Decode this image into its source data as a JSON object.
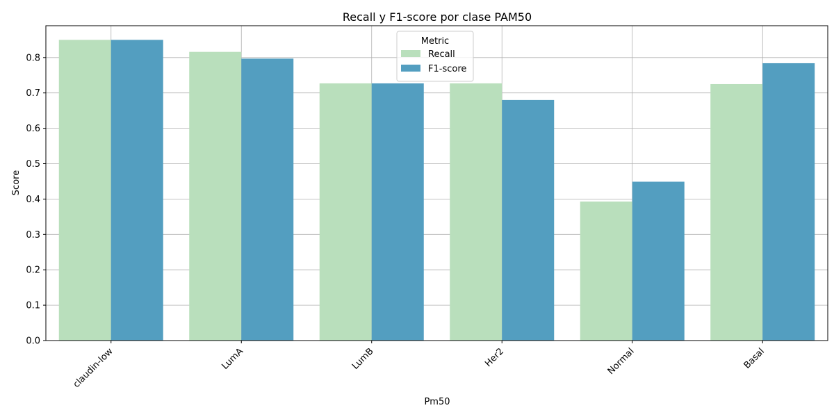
{
  "chart_data": {
    "type": "bar",
    "title": "Recall y F1-score por clase PAM50",
    "xlabel": "Pm50",
    "ylabel": "Score",
    "categories": [
      "claudin-low",
      "LumA",
      "LumB",
      "Her2",
      "Normal",
      "Basal"
    ],
    "series": [
      {
        "name": "Recall",
        "color": "#b9dfbc",
        "values": [
          0.85,
          0.816,
          0.727,
          0.727,
          0.393,
          0.725
        ]
      },
      {
        "name": "F1-score",
        "color": "#539ec0",
        "values": [
          0.85,
          0.797,
          0.727,
          0.68,
          0.449,
          0.784
        ]
      }
    ],
    "ylim": [
      0,
      0.89
    ],
    "yticks": [
      0.0,
      0.1,
      0.2,
      0.3,
      0.4,
      0.5,
      0.6,
      0.7,
      0.8
    ],
    "ytick_labels": [
      "0.0",
      "0.1",
      "0.2",
      "0.3",
      "0.4",
      "0.5",
      "0.6",
      "0.7",
      "0.8"
    ],
    "grid": true,
    "legend": {
      "title": "Metric",
      "placement": "top-center"
    }
  }
}
